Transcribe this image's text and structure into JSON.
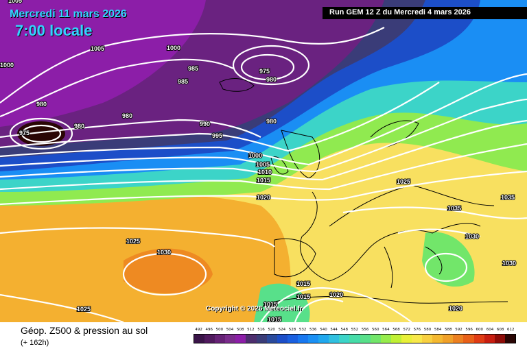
{
  "header": {
    "date": "Mercredi 11 mars 2026",
    "time": "7:00 locale",
    "run": "Run GEM 12 Z du Mercredi 4 mars 2026"
  },
  "copyright": "Copyright © 2026 Meteociel.fr",
  "legend": {
    "title": "Géop. Z500 & pression au sol",
    "subtitle": "(+ 162h)",
    "scale": [
      "492",
      "496",
      "500",
      "504",
      "508",
      "512",
      "516",
      "520",
      "524",
      "528",
      "532",
      "536",
      "540",
      "544",
      "548",
      "552",
      "556",
      "560",
      "564",
      "568",
      "572",
      "576",
      "580",
      "584",
      "588",
      "592",
      "596",
      "600",
      "604",
      "608",
      "612"
    ],
    "colors": [
      "#3a1448",
      "#501a5e",
      "#662276",
      "#7a2c8c",
      "#8c1ea8",
      "#4d2e6e",
      "#3a3c78",
      "#2a4a9c",
      "#1c4ec8",
      "#1a60e0",
      "#1878f0",
      "#1a90f4",
      "#20a8ee",
      "#30c0e0",
      "#3cd4c8",
      "#46dca8",
      "#58e08a",
      "#72e66a",
      "#96ec4c",
      "#c0f034",
      "#e8f038",
      "#f8e84a",
      "#f8d040",
      "#f4b830",
      "#f0a028",
      "#ec8020",
      "#e86018",
      "#e03c14",
      "#c81e10",
      "#8e0c08",
      "#2a0604"
    ]
  },
  "isobars": [
    {
      "label": "1005",
      "color": "#ffffff"
    },
    {
      "label": "1000",
      "color": "#ffffff"
    },
    {
      "label": "985",
      "color": "#ffffff"
    },
    {
      "label": "975",
      "color": "#ffffff"
    },
    {
      "label": "980",
      "color": "#ffffff"
    },
    {
      "label": "990",
      "color": "#ffffff"
    },
    {
      "label": "995",
      "color": "#ffffff"
    },
    {
      "label": "1010",
      "color": "#ffffff"
    },
    {
      "label": "1015",
      "color": "#ffffff"
    },
    {
      "label": "1020",
      "color": "#ffffff"
    },
    {
      "label": "1025",
      "color": "#ffffff"
    },
    {
      "label": "1030",
      "color": "#ffffff"
    },
    {
      "label": "1035",
      "color": "#ffffff"
    },
    {
      "label": "1010",
      "color": "#ffffff"
    }
  ]
}
